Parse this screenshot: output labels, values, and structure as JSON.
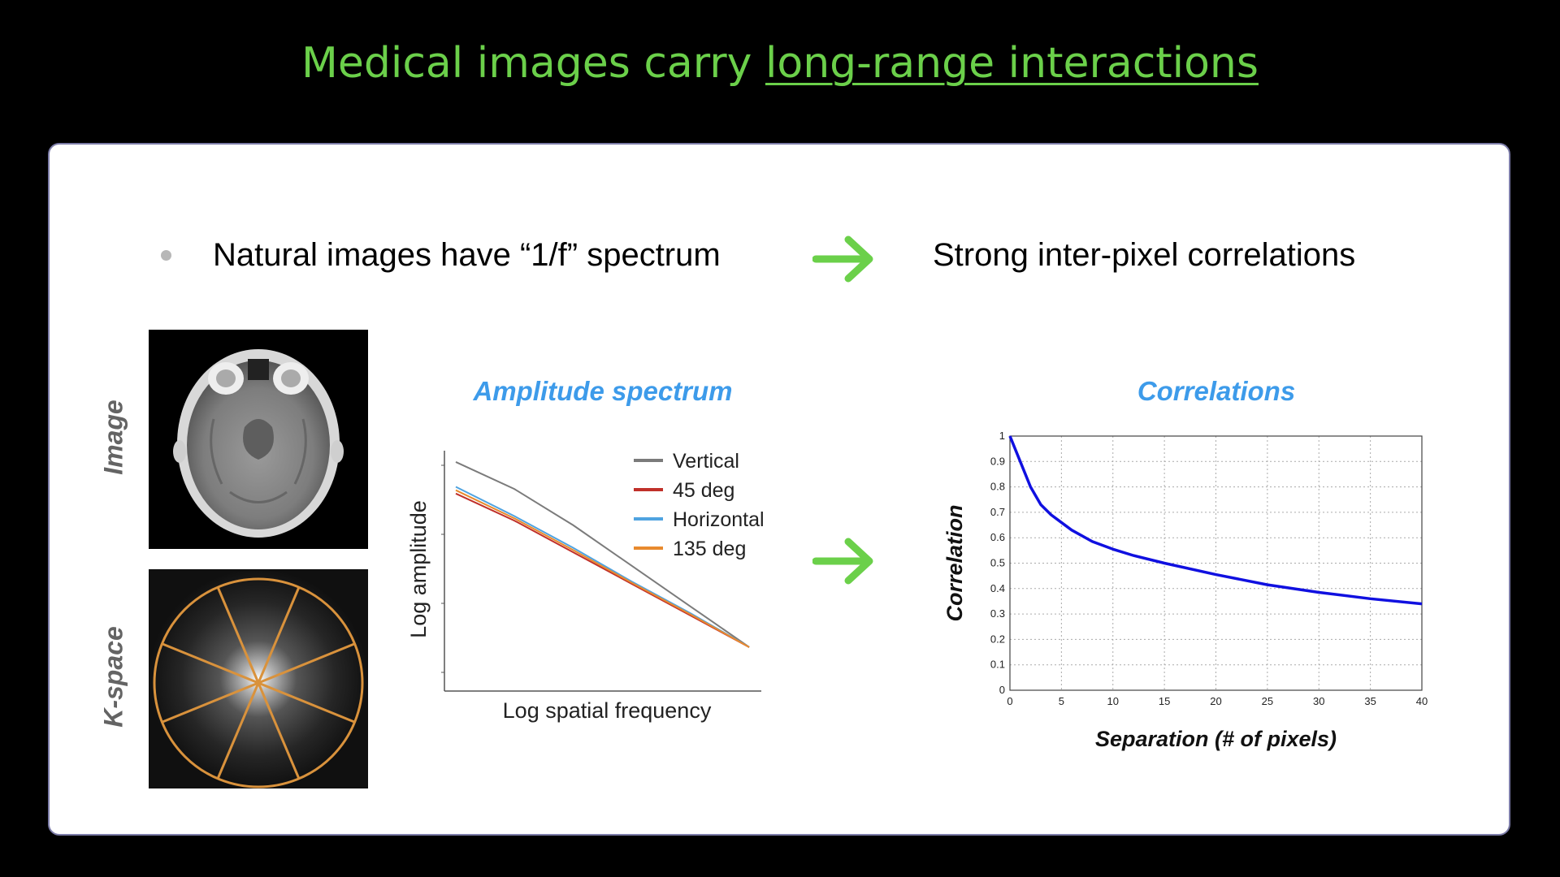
{
  "slide": {
    "title_prefix": "Medical images carry ",
    "title_emphasis": "long-range interactions",
    "bullet_text": "Natural images have “1/f” spectrum",
    "bullet_result": "Strong inter-pixel correlations",
    "label_image": "Image",
    "label_kspace": "K-space",
    "colors": {
      "title": "#6bd04a",
      "arrow": "#6bd04a",
      "chart_title": "#3d9bea",
      "kspace_lines": "#d9923c"
    }
  },
  "chart_data": [
    {
      "type": "line",
      "title": "Amplitude spectrum",
      "xlabel": "Log spatial frequency",
      "ylabel": "Log amplitude",
      "x": [
        0.0,
        0.2,
        0.4,
        0.6,
        0.8,
        1.0
      ],
      "series": [
        {
          "name": "Vertical",
          "color": "#7b7b7b",
          "values": [
            1.0,
            0.88,
            0.72,
            0.54,
            0.36,
            0.18
          ]
        },
        {
          "name": "45 deg",
          "color": "#c0302a",
          "values": [
            0.86,
            0.74,
            0.6,
            0.46,
            0.32,
            0.18
          ]
        },
        {
          "name": "Horizontal",
          "color": "#4fa3e0",
          "values": [
            0.89,
            0.76,
            0.62,
            0.47,
            0.33,
            0.18
          ]
        },
        {
          "name": "135 deg",
          "color": "#e88a2e",
          "values": [
            0.875,
            0.75,
            0.61,
            0.465,
            0.325,
            0.18
          ]
        }
      ],
      "legend": "top-right",
      "xlim": [
        0,
        1.08
      ],
      "ylim": [
        0,
        1.05
      ]
    },
    {
      "type": "line",
      "title": "Correlations",
      "xlabel": "Separation (# of pixels)",
      "ylabel": "Correlation",
      "xlim": [
        0,
        40
      ],
      "ylim": [
        0,
        1
      ],
      "xticks": [
        0,
        5,
        10,
        15,
        20,
        25,
        30,
        35,
        40
      ],
      "yticks": [
        0,
        0.1,
        0.2,
        0.3,
        0.4,
        0.5,
        0.6,
        0.7,
        0.8,
        0.9,
        1
      ],
      "ytick_labels": [
        "0",
        "0.1",
        "0.2",
        "0.3",
        "0.4",
        "0.5",
        "0.6",
        "0.7",
        "0.8",
        "0.9",
        "1"
      ],
      "grid": true,
      "series": [
        {
          "name": "correlation",
          "color": "#1010e0",
          "x": [
            0,
            1,
            2,
            3,
            4,
            5,
            6,
            8,
            10,
            12,
            15,
            20,
            25,
            30,
            35,
            40
          ],
          "values": [
            1.0,
            0.9,
            0.8,
            0.73,
            0.69,
            0.66,
            0.63,
            0.585,
            0.555,
            0.53,
            0.5,
            0.455,
            0.415,
            0.385,
            0.36,
            0.34
          ]
        }
      ]
    }
  ]
}
